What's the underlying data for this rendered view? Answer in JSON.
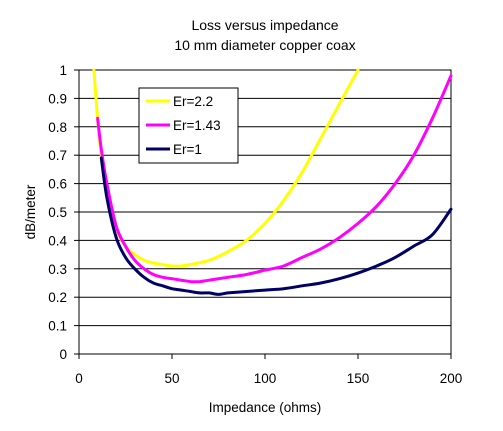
{
  "chart_data": {
    "type": "line",
    "title": "Loss versus impedance",
    "subtitle": "10 mm diameter copper coax",
    "xlabel": "Impedance (ohms)",
    "ylabel": "dB/meter",
    "xlim": [
      0,
      200
    ],
    "ylim": [
      0,
      1
    ],
    "xticks": [
      "0",
      "50",
      "100",
      "150",
      "200"
    ],
    "yticks": [
      "0",
      "0.1",
      "0.2",
      "0.3",
      "0.4",
      "0.5",
      "0.6",
      "0.7",
      "0.8",
      "0.9",
      "1"
    ],
    "grid": "horizontal",
    "legend_position": "top-left",
    "series": [
      {
        "name": "Er=2.2",
        "color": "#ffff00",
        "x": [
          8,
          10,
          12,
          15,
          20,
          25,
          30,
          35,
          40,
          45,
          50,
          55,
          60,
          70,
          80,
          90,
          100,
          110,
          120,
          130,
          140,
          150
        ],
        "y": [
          1.0,
          0.83,
          0.7,
          0.57,
          0.44,
          0.38,
          0.35,
          0.33,
          0.32,
          0.315,
          0.31,
          0.31,
          0.315,
          0.33,
          0.36,
          0.4,
          0.46,
          0.54,
          0.64,
          0.76,
          0.88,
          1.0
        ]
      },
      {
        "name": "Er=1.43",
        "color": "#ff00ff",
        "x": [
          10,
          12,
          15,
          20,
          25,
          30,
          35,
          40,
          45,
          50,
          55,
          60,
          65,
          70,
          80,
          90,
          100,
          110,
          120,
          130,
          140,
          150,
          160,
          170,
          180,
          190,
          200
        ],
        "y": [
          0.83,
          0.72,
          0.6,
          0.45,
          0.38,
          0.33,
          0.3,
          0.28,
          0.27,
          0.265,
          0.26,
          0.255,
          0.255,
          0.26,
          0.27,
          0.28,
          0.295,
          0.31,
          0.34,
          0.37,
          0.41,
          0.46,
          0.52,
          0.6,
          0.7,
          0.83,
          0.98
        ]
      },
      {
        "name": "Er=1",
        "color": "#000066",
        "x": [
          12,
          15,
          20,
          25,
          30,
          35,
          40,
          45,
          50,
          55,
          60,
          65,
          70,
          75,
          80,
          90,
          100,
          110,
          120,
          130,
          140,
          150,
          160,
          170,
          180,
          190,
          200
        ],
        "y": [
          0.69,
          0.55,
          0.41,
          0.34,
          0.3,
          0.27,
          0.25,
          0.24,
          0.23,
          0.225,
          0.22,
          0.215,
          0.215,
          0.21,
          0.215,
          0.22,
          0.225,
          0.23,
          0.24,
          0.25,
          0.265,
          0.285,
          0.31,
          0.34,
          0.38,
          0.42,
          0.51
        ]
      }
    ]
  }
}
